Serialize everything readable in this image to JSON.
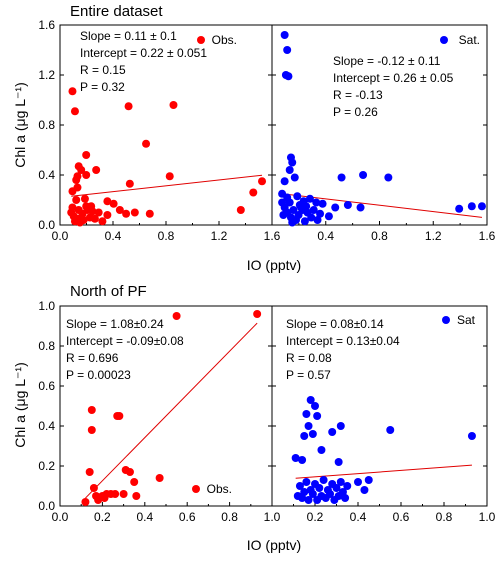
{
  "shared_ylabel": "Chl a (μg L⁻¹)",
  "chart_data": [
    {
      "type": "scatter",
      "title": "Entire dataset",
      "xlabel": "IO (pptv)",
      "ylabel": "Chl a (μg L⁻¹)",
      "xlim": [
        0,
        1.7
      ],
      "ylim": [
        0,
        1.6
      ],
      "xticks": [
        "0.0",
        "0.4",
        "0.8",
        "1.2",
        "1.6"
      ],
      "yticks": [
        "0.0",
        "0.4",
        "0.8",
        "1.2",
        "1.6"
      ],
      "color": "#ff0000",
      "legend": "Obs.",
      "annotation": [
        "Slope = 0.11 ± 0.1",
        "Intercept = 0.22 ± 0.051",
        "R = 0.15",
        "P = 0.32"
      ],
      "fit": {
        "slope": 0.11,
        "intercept": 0.22
      },
      "points": [
        [
          0.1,
          1.07
        ],
        [
          0.12,
          0.91
        ],
        [
          0.55,
          0.95
        ],
        [
          0.91,
          0.96
        ],
        [
          0.69,
          0.65
        ],
        [
          0.21,
          0.56
        ],
        [
          0.15,
          0.47
        ],
        [
          0.17,
          0.44
        ],
        [
          0.14,
          0.39
        ],
        [
          0.13,
          0.36
        ],
        [
          0.21,
          0.4
        ],
        [
          0.29,
          0.44
        ],
        [
          0.14,
          0.3
        ],
        [
          0.1,
          0.27
        ],
        [
          0.88,
          0.39
        ],
        [
          0.56,
          0.33
        ],
        [
          1.62,
          0.35
        ],
        [
          1.55,
          0.26
        ],
        [
          0.38,
          0.19
        ],
        [
          0.43,
          0.17
        ],
        [
          0.2,
          0.21
        ],
        [
          0.13,
          0.2
        ],
        [
          0.1,
          0.14
        ],
        [
          0.09,
          0.1
        ],
        [
          0.11,
          0.07
        ],
        [
          0.14,
          0.05
        ],
        [
          0.16,
          0.02
        ],
        [
          0.19,
          0.04
        ],
        [
          0.22,
          0.12
        ],
        [
          0.25,
          0.15
        ],
        [
          0.28,
          0.05
        ],
        [
          0.31,
          0.1
        ],
        [
          0.34,
          0.03
        ],
        [
          0.38,
          0.08
        ],
        [
          0.48,
          0.12
        ],
        [
          0.53,
          0.09
        ],
        [
          0.6,
          0.1
        ],
        [
          0.72,
          0.09
        ],
        [
          0.15,
          0.12
        ],
        [
          0.18,
          0.09
        ],
        [
          0.21,
          0.15
        ],
        [
          0.24,
          0.06
        ],
        [
          0.12,
          0.03
        ],
        [
          0.26,
          0.11
        ],
        [
          1.45,
          0.12
        ]
      ]
    },
    {
      "type": "scatter",
      "xlabel": "IO (pptv)",
      "xlim": [
        0,
        1.7
      ],
      "ylim": [
        0,
        1.6
      ],
      "xticks": [
        "0.0",
        "0.4",
        "0.8",
        "1.2",
        "1.6"
      ],
      "color": "#0000ff",
      "legend": "Sat.",
      "annotation": [
        "Slope = -0.12 ± 0.11",
        "Intercept = 0.26 ± 0.05",
        "R = -0.13",
        "P = 0.26"
      ],
      "fit": {
        "slope": -0.12,
        "intercept": 0.26
      },
      "points": [
        [
          0.1,
          1.52
        ],
        [
          0.12,
          1.4
        ],
        [
          0.11,
          1.2
        ],
        [
          0.13,
          1.19
        ],
        [
          0.15,
          0.54
        ],
        [
          0.16,
          0.5
        ],
        [
          0.14,
          0.44
        ],
        [
          0.18,
          0.38
        ],
        [
          0.1,
          0.35
        ],
        [
          0.08,
          0.25
        ],
        [
          0.12,
          0.22
        ],
        [
          0.2,
          0.23
        ],
        [
          0.25,
          0.19
        ],
        [
          0.3,
          0.21
        ],
        [
          0.35,
          0.18
        ],
        [
          0.4,
          0.17
        ],
        [
          0.55,
          0.38
        ],
        [
          0.72,
          0.4
        ],
        [
          0.92,
          0.38
        ],
        [
          0.6,
          0.16
        ],
        [
          0.7,
          0.14
        ],
        [
          0.1,
          0.14
        ],
        [
          0.12,
          0.1
        ],
        [
          0.15,
          0.06
        ],
        [
          0.17,
          0.12
        ],
        [
          0.19,
          0.04
        ],
        [
          0.21,
          0.08
        ],
        [
          0.23,
          0.14
        ],
        [
          0.26,
          0.03
        ],
        [
          0.28,
          0.1
        ],
        [
          0.31,
          0.06
        ],
        [
          0.33,
          0.12
        ],
        [
          0.36,
          0.04
        ],
        [
          0.38,
          0.09
        ],
        [
          0.45,
          0.07
        ],
        [
          0.5,
          0.14
        ],
        [
          0.08,
          0.18
        ],
        [
          0.09,
          0.08
        ],
        [
          0.14,
          0.18
        ],
        [
          0.22,
          0.16
        ],
        [
          0.27,
          0.15
        ],
        [
          1.48,
          0.13
        ],
        [
          1.58,
          0.15
        ],
        [
          1.66,
          0.15
        ],
        [
          0.16,
          0.02
        ],
        [
          0.24,
          0.12
        ]
      ]
    },
    {
      "type": "scatter",
      "title": "North of PF",
      "xlabel": "IO (pptv)",
      "ylabel": "Chl a (μg L⁻¹)",
      "xlim": [
        0,
        1.0
      ],
      "ylim": [
        0,
        1.0
      ],
      "xticks": [
        "0.0",
        "0.2",
        "0.4",
        "0.6",
        "0.8",
        "1.0"
      ],
      "yticks": [
        "0.0",
        "0.2",
        "0.4",
        "0.6",
        "0.8",
        "1.0"
      ],
      "color": "#ff0000",
      "legend": "Obs.",
      "annotation": [
        "Slope = 1.08±0.24",
        "Intercept = -0.09±0.08",
        "R = 0.696",
        "P = 0.00023"
      ],
      "fit": {
        "slope": 1.08,
        "intercept": -0.09
      },
      "points": [
        [
          0.55,
          0.95
        ],
        [
          0.93,
          0.96
        ],
        [
          0.15,
          0.48
        ],
        [
          0.15,
          0.38
        ],
        [
          0.27,
          0.45
        ],
        [
          0.28,
          0.45
        ],
        [
          0.14,
          0.17
        ],
        [
          0.31,
          0.18
        ],
        [
          0.33,
          0.17
        ],
        [
          0.35,
          0.12
        ],
        [
          0.47,
          0.14
        ],
        [
          0.3,
          0.06
        ],
        [
          0.36,
          0.05
        ],
        [
          0.16,
          0.09
        ],
        [
          0.17,
          0.05
        ],
        [
          0.2,
          0.05
        ],
        [
          0.22,
          0.06
        ],
        [
          0.18,
          0.03
        ],
        [
          0.12,
          0.02
        ],
        [
          0.21,
          0.04
        ],
        [
          0.26,
          0.06
        ],
        [
          0.24,
          0.06
        ]
      ]
    },
    {
      "type": "scatter",
      "xlabel": "IO (pptv)",
      "xlim": [
        0,
        1.0
      ],
      "ylim": [
        0,
        1.0
      ],
      "xticks": [
        "0.0",
        "0.2",
        "0.4",
        "0.6",
        "0.8",
        "1.0"
      ],
      "color": "#0000ff",
      "legend": "Sat",
      "annotation": [
        "Slope = 0.08±0.14",
        "Intercept = 0.13±0.04",
        "R = 0.08",
        "P = 0.57"
      ],
      "fit": {
        "slope": 0.08,
        "intercept": 0.13
      },
      "points": [
        [
          0.18,
          0.53
        ],
        [
          0.2,
          0.5
        ],
        [
          0.16,
          0.46
        ],
        [
          0.17,
          0.4
        ],
        [
          0.21,
          0.45
        ],
        [
          0.19,
          0.36
        ],
        [
          0.15,
          0.35
        ],
        [
          0.28,
          0.37
        ],
        [
          0.32,
          0.4
        ],
        [
          0.55,
          0.38
        ],
        [
          0.93,
          0.35
        ],
        [
          0.11,
          0.24
        ],
        [
          0.14,
          0.23
        ],
        [
          0.23,
          0.28
        ],
        [
          0.31,
          0.22
        ],
        [
          0.12,
          0.05
        ],
        [
          0.13,
          0.1
        ],
        [
          0.14,
          0.04
        ],
        [
          0.15,
          0.07
        ],
        [
          0.16,
          0.12
        ],
        [
          0.17,
          0.03
        ],
        [
          0.18,
          0.08
        ],
        [
          0.19,
          0.06
        ],
        [
          0.2,
          0.11
        ],
        [
          0.21,
          0.03
        ],
        [
          0.22,
          0.09
        ],
        [
          0.23,
          0.05
        ],
        [
          0.24,
          0.13
        ],
        [
          0.25,
          0.04
        ],
        [
          0.26,
          0.08
        ],
        [
          0.27,
          0.06
        ],
        [
          0.28,
          0.11
        ],
        [
          0.29,
          0.03
        ],
        [
          0.3,
          0.09
        ],
        [
          0.31,
          0.05
        ],
        [
          0.32,
          0.12
        ],
        [
          0.33,
          0.07
        ],
        [
          0.34,
          0.04
        ],
        [
          0.35,
          0.1
        ],
        [
          0.4,
          0.12
        ],
        [
          0.43,
          0.08
        ],
        [
          0.45,
          0.13
        ]
      ]
    }
  ]
}
